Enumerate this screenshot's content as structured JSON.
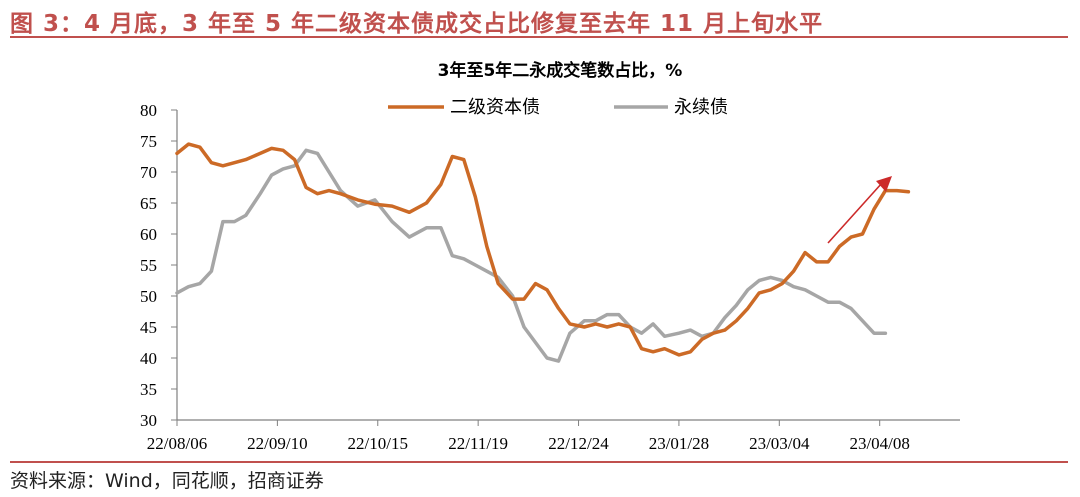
{
  "figure": {
    "title": "图 3：4 月底，3 年至 5 年二级资本债成交占比修复至去年 11 月上旬水平",
    "source": "资料来源：Wind，同花顺，招商证券"
  },
  "colors": {
    "accent": "#c0504d",
    "series1": "#cc6a26",
    "series2": "#a6a6a6",
    "arrow": "#cc2a2a"
  },
  "chart_data": {
    "type": "line",
    "title": "3年至5年二永成交笔数占比，%",
    "ylim": [
      30,
      80
    ],
    "yticks": [
      30,
      35,
      40,
      45,
      50,
      55,
      60,
      65,
      70,
      75,
      80
    ],
    "xrange": [
      "2022-08-06",
      "2023-05-06"
    ],
    "xticks": [
      "22/08/06",
      "22/09/10",
      "22/10/15",
      "22/11/19",
      "22/12/24",
      "23/01/28",
      "23/03/04",
      "23/04/08"
    ],
    "grid": false,
    "legend_position": "top",
    "series": [
      {
        "name": "二级资本债",
        "color": "#cc6a26",
        "x": [
          "2022-08-06",
          "2022-08-10",
          "2022-08-14",
          "2022-08-18",
          "2022-08-22",
          "2022-08-26",
          "2022-08-30",
          "2022-09-04",
          "2022-09-08",
          "2022-09-12",
          "2022-09-16",
          "2022-09-20",
          "2022-09-24",
          "2022-09-28",
          "2022-10-02",
          "2022-10-08",
          "2022-10-14",
          "2022-10-20",
          "2022-10-26",
          "2022-11-01",
          "2022-11-06",
          "2022-11-10",
          "2022-11-14",
          "2022-11-18",
          "2022-11-22",
          "2022-11-26",
          "2022-12-01",
          "2022-12-05",
          "2022-12-09",
          "2022-12-13",
          "2022-12-17",
          "2022-12-21",
          "2022-12-26",
          "2022-12-30",
          "2023-01-03",
          "2023-01-07",
          "2023-01-11",
          "2023-01-15",
          "2023-01-19",
          "2023-01-23",
          "2023-01-28",
          "2023-02-01",
          "2023-02-05",
          "2023-02-09",
          "2023-02-13",
          "2023-02-17",
          "2023-02-21",
          "2023-02-25",
          "2023-03-01",
          "2023-03-05",
          "2023-03-09",
          "2023-03-13",
          "2023-03-17",
          "2023-03-21",
          "2023-03-25",
          "2023-03-29",
          "2023-04-02",
          "2023-04-06",
          "2023-04-10",
          "2023-04-14",
          "2023-04-18",
          "2023-04-22",
          "2023-04-26",
          "2023-04-30",
          "2023-05-04"
        ],
        "y": [
          73,
          74.5,
          74,
          71.5,
          71,
          71.5,
          72,
          73,
          73.8,
          73.5,
          72,
          67.5,
          66.5,
          67,
          66.5,
          65.5,
          64.8,
          64.5,
          63.5,
          65,
          68,
          72.5,
          72,
          66,
          58,
          52,
          49.5,
          49.5,
          52,
          51,
          48,
          45.5,
          45,
          45.5,
          45,
          45.5,
          45,
          41.5,
          41,
          41.5,
          40.5,
          41,
          43,
          44,
          44.5,
          46,
          48,
          50.5,
          51,
          52,
          54,
          57,
          55.5,
          55.5,
          58,
          59.5,
          60,
          64,
          67,
          67,
          66.8,
          null,
          null,
          null,
          null
        ]
      },
      {
        "name": "永续债",
        "color": "#a6a6a6",
        "x": [
          "2022-08-06",
          "2022-08-10",
          "2022-08-14",
          "2022-08-18",
          "2022-08-22",
          "2022-08-26",
          "2022-08-30",
          "2022-09-04",
          "2022-09-08",
          "2022-09-12",
          "2022-09-16",
          "2022-09-20",
          "2022-09-24",
          "2022-09-28",
          "2022-10-02",
          "2022-10-08",
          "2022-10-14",
          "2022-10-20",
          "2022-10-26",
          "2022-11-01",
          "2022-11-06",
          "2022-11-10",
          "2022-11-14",
          "2022-11-18",
          "2022-11-22",
          "2022-11-26",
          "2022-12-01",
          "2022-12-05",
          "2022-12-09",
          "2022-12-13",
          "2022-12-17",
          "2022-12-21",
          "2022-12-26",
          "2022-12-30",
          "2023-01-03",
          "2023-01-07",
          "2023-01-11",
          "2023-01-15",
          "2023-01-19",
          "2023-01-23",
          "2023-01-28",
          "2023-02-01",
          "2023-02-05",
          "2023-02-09",
          "2023-02-13",
          "2023-02-17",
          "2023-02-21",
          "2023-02-25",
          "2023-03-01",
          "2023-03-05",
          "2023-03-09",
          "2023-03-13",
          "2023-03-17",
          "2023-03-21",
          "2023-03-25",
          "2023-03-29",
          "2023-04-02",
          "2023-04-06",
          "2023-04-10",
          "2023-04-14",
          "2023-04-18",
          "2023-04-22",
          "2023-04-26",
          "2023-04-30",
          "2023-05-04"
        ],
        "y": [
          50.5,
          51.5,
          52,
          54,
          62,
          62,
          63,
          66.5,
          69.5,
          70.5,
          71,
          73.5,
          73,
          70,
          67,
          64.5,
          65.5,
          62,
          59.5,
          61,
          61,
          56.5,
          56,
          55,
          54,
          53,
          50,
          45,
          42.5,
          40,
          39.5,
          44,
          46,
          46,
          47,
          47,
          45,
          44,
          45.5,
          43.5,
          44,
          44.5,
          43.5,
          44,
          46.5,
          48.5,
          51,
          52.5,
          53,
          52.5,
          51.5,
          51,
          50,
          49,
          49,
          48,
          46,
          44,
          44,
          null,
          null,
          null,
          null,
          null,
          null
        ]
      }
    ]
  }
}
